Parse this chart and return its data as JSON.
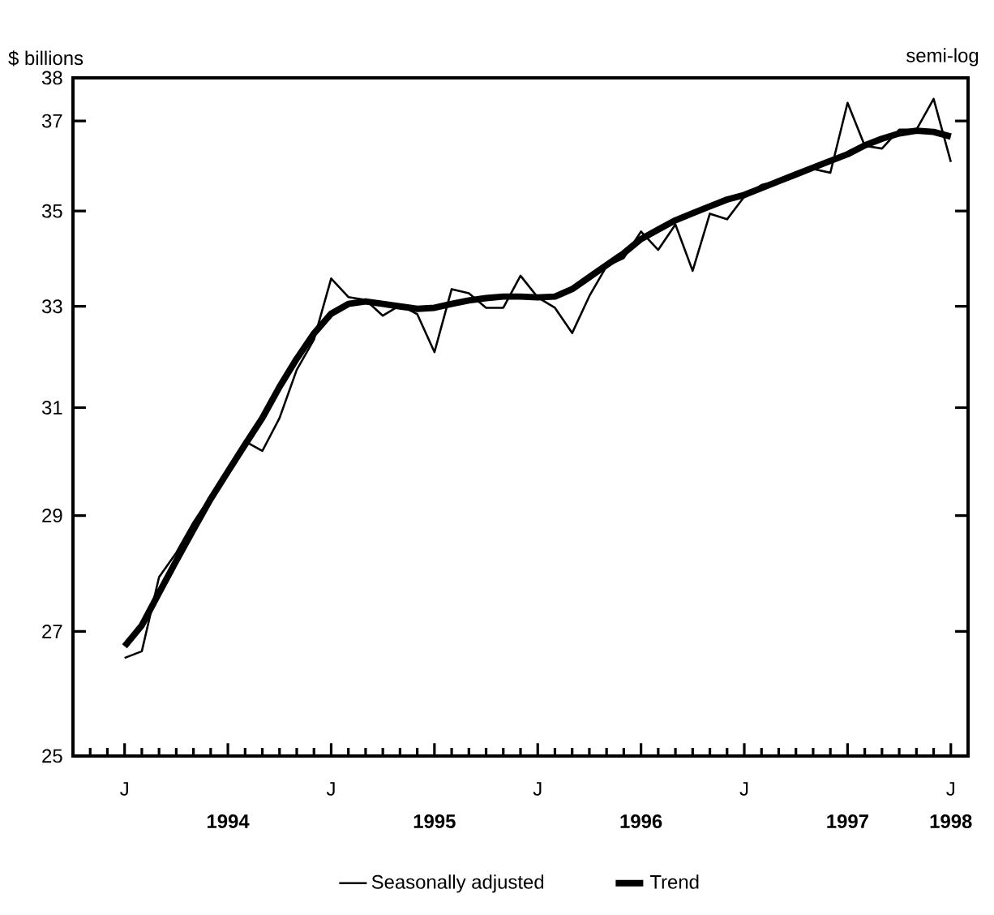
{
  "chart_data": {
    "type": "line",
    "ylabel": "$ billions",
    "annotations": [
      "semi-log",
      "J",
      "J",
      "J",
      "J",
      "J"
    ],
    "x": [
      "1994-01",
      "1994-02",
      "1994-03",
      "1994-04",
      "1994-05",
      "1994-06",
      "1994-07",
      "1994-08",
      "1994-09",
      "1994-10",
      "1994-11",
      "1994-12",
      "1995-01",
      "1995-02",
      "1995-03",
      "1995-04",
      "1995-05",
      "1995-06",
      "1995-07",
      "1995-08",
      "1995-09",
      "1995-10",
      "1995-11",
      "1995-12",
      "1996-01",
      "1996-02",
      "1996-03",
      "1996-04",
      "1996-05",
      "1996-06",
      "1996-07",
      "1996-08",
      "1996-09",
      "1996-10",
      "1996-11",
      "1996-12",
      "1997-01",
      "1997-02",
      "1997-03",
      "1997-04",
      "1997-05",
      "1997-06",
      "1997-07",
      "1997-08",
      "1997-09",
      "1997-10",
      "1997-11",
      "1997-12",
      "1998-01"
    ],
    "series": [
      {
        "name": "Seasonally adjusted",
        "color": "#000000",
        "values": [
          26.56,
          26.67,
          27.92,
          28.34,
          28.88,
          29.35,
          29.74,
          30.36,
          30.18,
          30.8,
          31.73,
          32.33,
          33.57,
          33.19,
          33.13,
          32.81,
          33.02,
          32.84,
          32.08,
          33.35,
          33.27,
          32.97,
          32.97,
          33.63,
          33.18,
          32.97,
          32.46,
          33.21,
          33.83,
          34.0,
          34.56,
          34.17,
          34.71,
          33.73,
          34.94,
          34.82,
          35.31,
          35.57,
          35.66,
          35.82,
          35.92,
          35.84,
          37.42,
          36.44,
          36.38,
          36.8,
          36.8,
          37.51,
          36.08
        ]
      },
      {
        "name": "Trend",
        "color": "#000000",
        "values": [
          26.75,
          27.1,
          27.65,
          28.2,
          28.75,
          29.3,
          29.8,
          30.3,
          30.8,
          31.4,
          31.95,
          32.45,
          32.85,
          33.05,
          33.1,
          33.05,
          33.0,
          32.95,
          32.97,
          33.05,
          33.12,
          33.17,
          33.2,
          33.2,
          33.18,
          33.2,
          33.35,
          33.6,
          33.85,
          34.1,
          34.4,
          34.6,
          34.8,
          34.95,
          35.1,
          35.25,
          35.35,
          35.5,
          35.65,
          35.8,
          35.95,
          36.1,
          36.25,
          36.45,
          36.6,
          36.72,
          36.78,
          36.75,
          36.65
        ]
      }
    ],
    "xlim": [
      "1993-10",
      "1998-02"
    ],
    "xticks": [
      {
        "value": "1994-01",
        "label": null
      },
      {
        "value": "1995-01",
        "label": null
      },
      {
        "value": "1996-01",
        "label": null
      },
      {
        "value": "1997-01",
        "label": null
      },
      {
        "value": "1994-07",
        "label": "1994"
      },
      {
        "value": "1995-07",
        "label": "1995"
      },
      {
        "value": "1996-07",
        "label": "1996"
      },
      {
        "value": "1997-07",
        "label": "1997"
      },
      {
        "value": "1998-01",
        "label": "1998"
      }
    ],
    "ylim": [
      25,
      38
    ],
    "yticks": [
      25,
      27,
      29,
      31,
      33,
      35,
      37,
      38
    ],
    "log": "y",
    "legend": "bottom",
    "line_style": "solid",
    "marker": "none"
  }
}
